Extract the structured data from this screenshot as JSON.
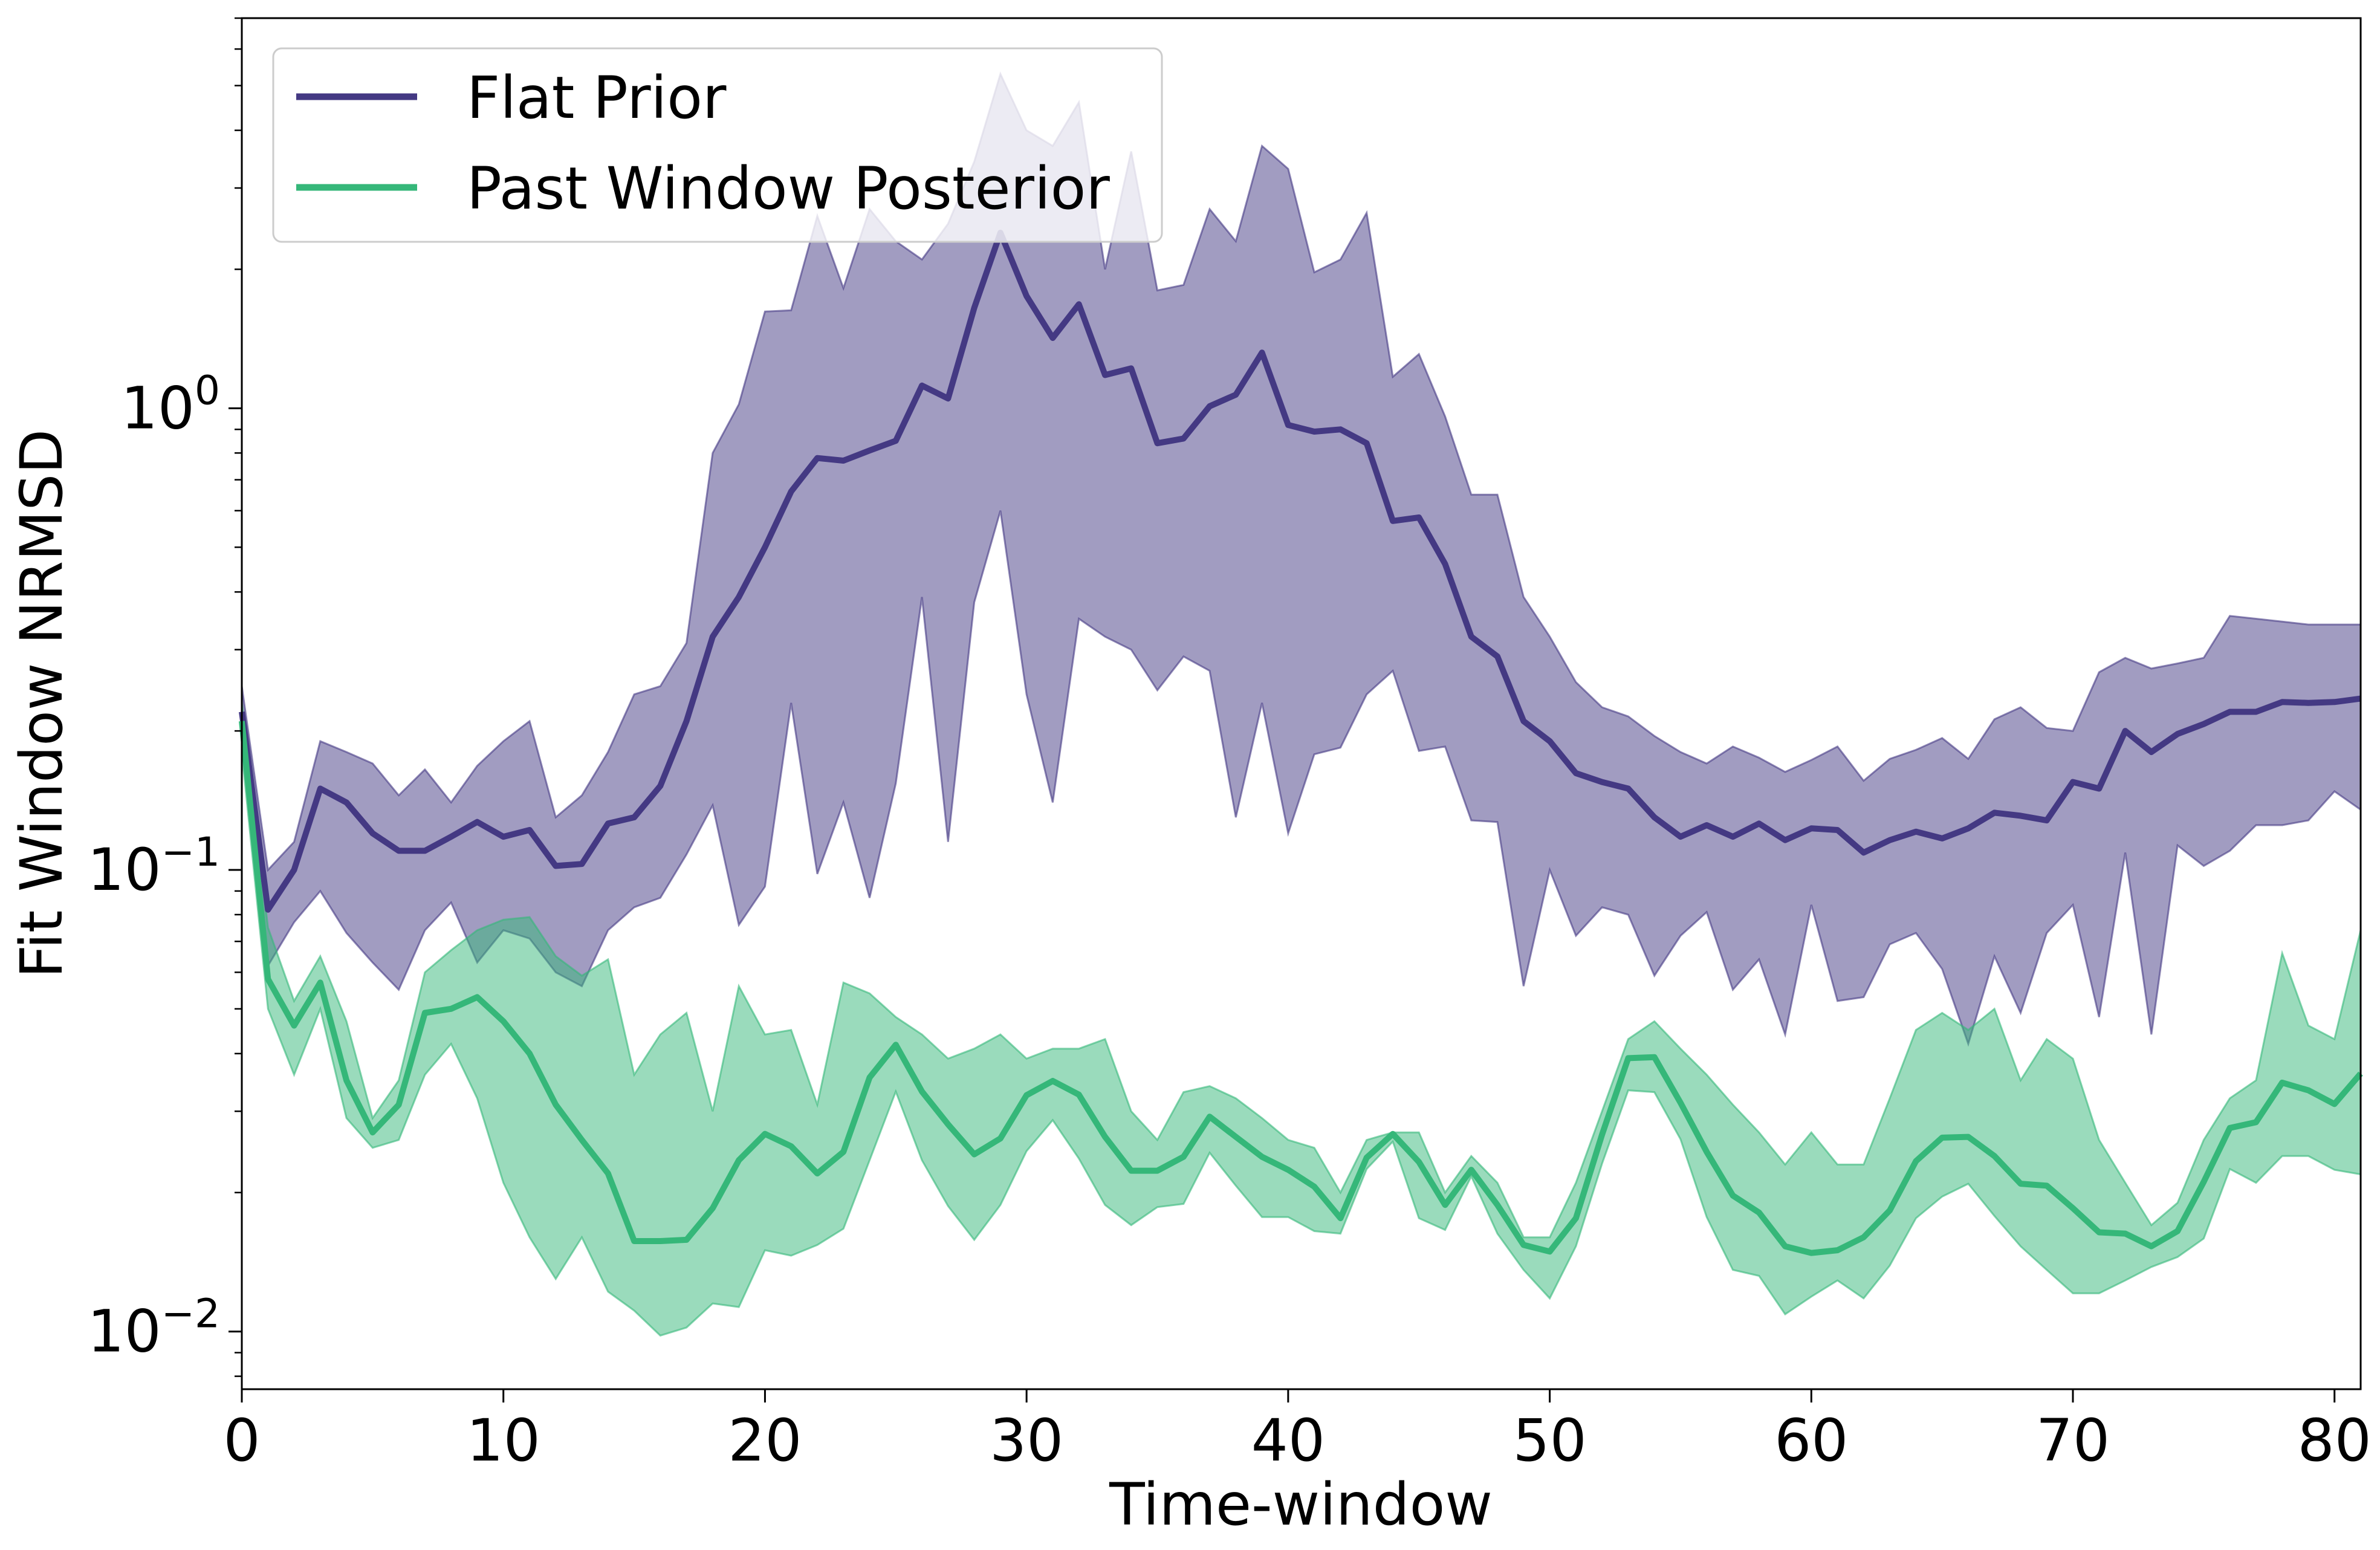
{
  "chart_data": {
    "type": "line",
    "xlabel": "Time-window",
    "ylabel": "Fit Window NRMSD",
    "xlim": [
      0,
      81
    ],
    "ylim": [
      0.0075,
      7.0
    ],
    "yscale": "log",
    "x_ticks": [
      0,
      10,
      20,
      30,
      40,
      50,
      60,
      70,
      80
    ],
    "x_tick_labels": [
      "0",
      "10",
      "20",
      "30",
      "40",
      "50",
      "60",
      "70",
      "80"
    ],
    "y_ticks": [
      {
        "value": 1,
        "base": "10",
        "exp": "0"
      },
      {
        "value": 0.1,
        "base": "10",
        "exp": "−1"
      },
      {
        "value": 0.01,
        "base": "10",
        "exp": "−2"
      }
    ],
    "legend_position": "top-left",
    "series": [
      {
        "name": "Flat Prior",
        "color": "#443983",
        "fill_opacity": 0.5,
        "median": [
          0.22,
          0.082,
          0.1,
          0.15,
          0.14,
          0.12,
          0.11,
          0.11,
          0.118,
          0.127,
          0.118,
          0.122,
          0.102,
          0.103,
          0.126,
          0.13,
          0.152,
          0.21,
          0.32,
          0.39,
          0.5,
          0.66,
          0.78,
          0.77,
          0.81,
          0.85,
          1.12,
          1.05,
          1.65,
          2.4,
          1.75,
          1.42,
          1.68,
          1.18,
          1.22,
          0.84,
          0.86,
          1.01,
          1.07,
          1.32,
          0.92,
          0.89,
          0.9,
          0.84,
          0.57,
          0.58,
          0.46,
          0.32,
          0.29,
          0.21,
          0.19,
          0.162,
          0.155,
          0.15,
          0.13,
          0.118,
          0.125,
          0.118,
          0.126,
          0.116,
          0.123,
          0.122,
          0.109,
          0.116,
          0.121,
          0.117,
          0.123,
          0.133,
          0.131,
          0.128,
          0.155,
          0.15,
          0.2,
          0.18,
          0.197,
          0.207,
          0.22,
          0.22,
          0.231,
          0.23,
          0.231,
          0.235
        ],
        "upper": [
          0.25,
          0.1,
          0.115,
          0.19,
          0.18,
          0.17,
          0.145,
          0.165,
          0.14,
          0.168,
          0.19,
          0.21,
          0.13,
          0.145,
          0.18,
          0.24,
          0.25,
          0.31,
          0.8,
          1.02,
          1.62,
          1.63,
          2.61,
          1.82,
          2.7,
          2.3,
          2.1,
          2.51,
          3.42,
          5.3,
          4.0,
          3.7,
          4.6,
          2.0,
          3.6,
          1.8,
          1.85,
          2.7,
          2.3,
          3.7,
          3.3,
          1.97,
          2.1,
          2.65,
          1.17,
          1.31,
          0.96,
          0.65,
          0.65,
          0.39,
          0.32,
          0.255,
          0.225,
          0.215,
          0.195,
          0.18,
          0.17,
          0.185,
          0.175,
          0.163,
          0.173,
          0.185,
          0.156,
          0.174,
          0.182,
          0.193,
          0.174,
          0.212,
          0.225,
          0.203,
          0.2,
          0.268,
          0.288,
          0.273,
          0.28,
          0.288,
          0.355,
          0.35,
          0.345,
          0.34,
          0.34,
          0.34
        ],
        "lower": [
          0.2,
          0.062,
          0.077,
          0.09,
          0.073,
          0.063,
          0.055,
          0.074,
          0.085,
          0.063,
          0.074,
          0.071,
          0.06,
          0.056,
          0.074,
          0.083,
          0.087,
          0.108,
          0.138,
          0.076,
          0.092,
          0.23,
          0.098,
          0.14,
          0.087,
          0.154,
          0.39,
          0.115,
          0.38,
          0.6,
          0.24,
          0.14,
          0.35,
          0.32,
          0.3,
          0.245,
          0.29,
          0.27,
          0.13,
          0.23,
          0.12,
          0.178,
          0.184,
          0.24,
          0.27,
          0.181,
          0.185,
          0.128,
          0.127,
          0.056,
          0.1,
          0.072,
          0.083,
          0.08,
          0.059,
          0.072,
          0.081,
          0.055,
          0.064,
          0.044,
          0.084,
          0.052,
          0.053,
          0.069,
          0.073,
          0.061,
          0.042,
          0.065,
          0.049,
          0.073,
          0.084,
          0.048,
          0.109,
          0.044,
          0.113,
          0.102,
          0.11,
          0.125,
          0.125,
          0.128,
          0.148,
          0.135
        ]
      },
      {
        "name": "Past Window Posterior",
        "color": "#35b779",
        "fill_opacity": 0.5,
        "median": [
          0.21,
          0.058,
          0.046,
          0.057,
          0.035,
          0.027,
          0.031,
          0.049,
          0.05,
          0.053,
          0.047,
          0.04,
          0.031,
          0.026,
          0.022,
          0.0157,
          0.0157,
          0.0158,
          0.0185,
          0.0235,
          0.0268,
          0.0252,
          0.022,
          0.0245,
          0.0355,
          0.0418,
          0.0331,
          0.0281,
          0.0242,
          0.0262,
          0.0325,
          0.0349,
          0.0326,
          0.0264,
          0.0223,
          0.0223,
          0.0239,
          0.0292,
          0.0264,
          0.0239,
          0.0224,
          0.0206,
          0.0176,
          0.0238,
          0.0268,
          0.0233,
          0.0188,
          0.0224,
          0.0188,
          0.0154,
          0.0149,
          0.0176,
          0.0267,
          0.0391,
          0.0393,
          0.0313,
          0.0245,
          0.0197,
          0.0181,
          0.0153,
          0.0148,
          0.015,
          0.016,
          0.0183,
          0.0234,
          0.0263,
          0.0264,
          0.024,
          0.0209,
          0.0207,
          0.0185,
          0.0164,
          0.0163,
          0.0153,
          0.0165,
          0.0211,
          0.0276,
          0.0284,
          0.0346,
          0.0333,
          0.0311,
          0.0362
        ],
        "upper": [
          0.23,
          0.075,
          0.052,
          0.065,
          0.047,
          0.029,
          0.035,
          0.06,
          0.067,
          0.074,
          0.078,
          0.079,
          0.065,
          0.059,
          0.064,
          0.036,
          0.044,
          0.049,
          0.03,
          0.056,
          0.044,
          0.045,
          0.031,
          0.057,
          0.054,
          0.048,
          0.044,
          0.039,
          0.041,
          0.044,
          0.039,
          0.041,
          0.041,
          0.043,
          0.03,
          0.026,
          0.033,
          0.034,
          0.032,
          0.029,
          0.026,
          0.025,
          0.02,
          0.026,
          0.027,
          0.027,
          0.02,
          0.024,
          0.021,
          0.016,
          0.016,
          0.021,
          0.03,
          0.043,
          0.047,
          0.041,
          0.036,
          0.031,
          0.027,
          0.023,
          0.027,
          0.023,
          0.023,
          0.032,
          0.045,
          0.049,
          0.045,
          0.05,
          0.035,
          0.043,
          0.039,
          0.026,
          0.021,
          0.017,
          0.019,
          0.026,
          0.032,
          0.035,
          0.066,
          0.046,
          0.043,
          0.074
        ],
        "lower": [
          0.18,
          0.05,
          0.036,
          0.05,
          0.029,
          0.025,
          0.026,
          0.036,
          0.042,
          0.032,
          0.021,
          0.016,
          0.013,
          0.016,
          0.0122,
          0.0111,
          0.0098,
          0.0102,
          0.0115,
          0.0113,
          0.015,
          0.0146,
          0.0154,
          0.0167,
          0.0235,
          0.0331,
          0.0235,
          0.0187,
          0.0158,
          0.0188,
          0.0246,
          0.0287,
          0.0237,
          0.0188,
          0.017,
          0.0186,
          0.0189,
          0.0244,
          0.0207,
          0.0177,
          0.0177,
          0.0165,
          0.0163,
          0.0225,
          0.0258,
          0.0176,
          0.0166,
          0.0217,
          0.0163,
          0.0136,
          0.0118,
          0.0153,
          0.0231,
          0.0333,
          0.033,
          0.0261,
          0.0177,
          0.0136,
          0.0132,
          0.0109,
          0.0119,
          0.0129,
          0.0118,
          0.0139,
          0.0176,
          0.0196,
          0.0209,
          0.0178,
          0.0153,
          0.0136,
          0.0121,
          0.0121,
          0.0129,
          0.0138,
          0.0145,
          0.0159,
          0.0225,
          0.021,
          0.024,
          0.024,
          0.0224,
          0.0219
        ]
      }
    ]
  }
}
